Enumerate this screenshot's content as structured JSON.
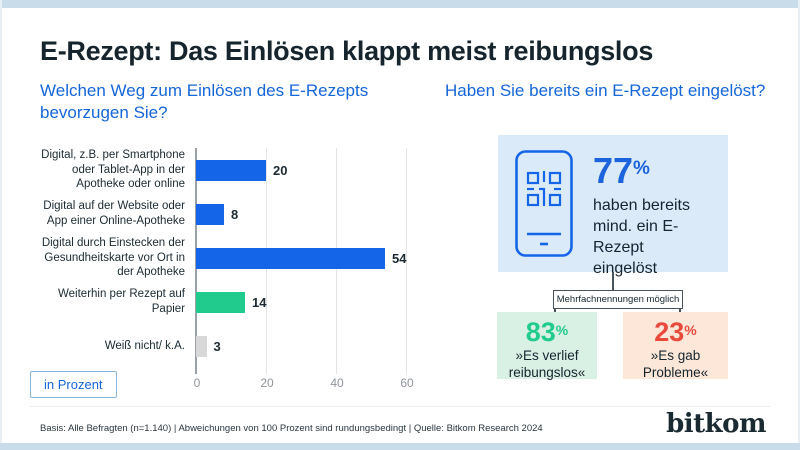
{
  "slide": {
    "title": "E-Rezept: Das Einlösen klappt meist reibungslos",
    "accent_color": "#1566d8"
  },
  "left_section": {
    "question": "Welchen Weg zum Einlösen des E-Rezepts bevorzugen Sie?",
    "unit_label": "in Prozent"
  },
  "right_section": {
    "question": "Haben Sie bereits ein E-Rezept eingelöst?",
    "stat": {
      "value": "77",
      "unit": "%",
      "line1": "haben bereits",
      "line2": "mind. ein E-Rezept",
      "line3": "eingelöst"
    },
    "note": "Mehrfachnennungen möglich",
    "outcomes": [
      {
        "value": "83",
        "unit": "%",
        "line1": "»Es verlief",
        "line2": "reibungslos«",
        "value_color": "#21cb8e",
        "bg_color": "#d9f0e4"
      },
      {
        "value": "23",
        "unit": "%",
        "line1": "»Es gab",
        "line2": "Probleme«",
        "value_color": "#e84b3c",
        "bg_color": "#fce7d9"
      }
    ],
    "phone_icon_color": "#1565e8",
    "card_bg_color": "#daeaf8"
  },
  "chart_data": [
    {
      "type": "bar",
      "orientation": "horizontal",
      "title": "Welchen Weg zum Einlösen des E-Rezepts bevorzugen Sie?",
      "unit": "in Prozent",
      "categories": [
        "Digital, z.B. per Smartphone oder Tablet-App in der Apotheke oder online",
        "Digital auf der Website oder App einer Online-Apotheke",
        "Digital durch Einstecken der Gesundheitskarte vor Ort in der Apotheke",
        "Weiterhin per Rezept auf Papier",
        "Weiß nicht/ k.A."
      ],
      "values": [
        20,
        8,
        54,
        14,
        3
      ],
      "bar_colors": [
        "#1565e8",
        "#1565e8",
        "#1565e8",
        "#21cb8e",
        "#d8d8d8"
      ],
      "xlim": [
        0,
        60
      ],
      "xticks": [
        0,
        20,
        40,
        60
      ],
      "grid": true,
      "value_labels": true,
      "legend": false
    },
    {
      "type": "stat",
      "title": "Haben Sie bereits ein E-Rezept eingelöst?",
      "stats": [
        {
          "value": 77,
          "unit": "%",
          "label": "haben bereits mind. ein E-Rezept eingelöst"
        },
        {
          "value": 83,
          "unit": "%",
          "label": "»Es verlief reibungslos«"
        },
        {
          "value": 23,
          "unit": "%",
          "label": "»Es gab Probleme«"
        }
      ],
      "note": "Mehrfachnennungen möglich"
    }
  ],
  "footer": {
    "basis": "Basis: Alle Befragten (n=1.140) | Abweichungen von 100 Prozent sind rundungsbedingt | Quelle: Bitkom Research 2024",
    "logo": "bitkom"
  }
}
